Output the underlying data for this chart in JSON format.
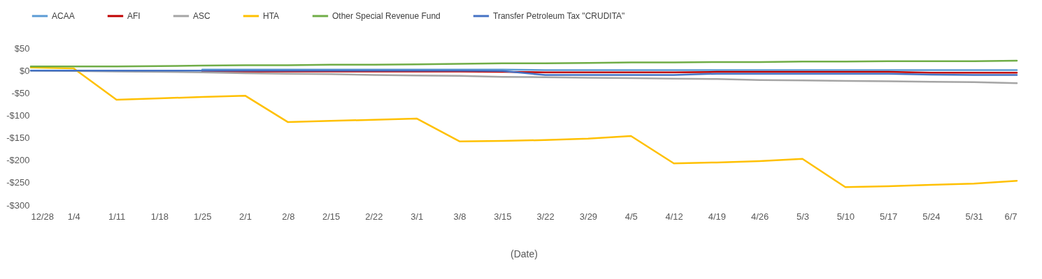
{
  "chart_data": {
    "type": "line",
    "xlabel": "(Date)",
    "categories": [
      "12/28",
      "1/4",
      "1/11",
      "1/18",
      "1/25",
      "2/1",
      "2/8",
      "2/15",
      "2/22",
      "3/1",
      "3/8",
      "3/15",
      "3/22",
      "3/29",
      "4/5",
      "4/12",
      "4/19",
      "4/26",
      "5/3",
      "5/10",
      "5/17",
      "5/24",
      "5/31",
      "6/7"
    ],
    "series": [
      {
        "name": "ACAA",
        "color": "#5b9bd5",
        "values": [
          null,
          null,
          null,
          null,
          2,
          2,
          2,
          2,
          2,
          2,
          2,
          2,
          1,
          1,
          1,
          1,
          1,
          1,
          1,
          1,
          1,
          1,
          1,
          1
        ]
      },
      {
        "name": "AFI",
        "color": "#c00000",
        "values": [
          null,
          null,
          null,
          null,
          -2,
          -2,
          -2,
          -2,
          -2,
          -2,
          -2,
          -3,
          -4,
          -4,
          -4,
          -4,
          -3,
          -3,
          -3,
          -3,
          -3,
          -5,
          -5,
          -5
        ]
      },
      {
        "name": "ASC",
        "color": "#a5a5a5",
        "values": [
          0,
          -1,
          -2,
          -3,
          -4,
          -6,
          -7,
          -8,
          -10,
          -11,
          -12,
          -14,
          -15,
          -16,
          -17,
          -18,
          -19,
          -21,
          -22,
          -23,
          -24,
          -25,
          -26,
          -28
        ]
      },
      {
        "name": "HTA",
        "color": "#ffc000",
        "values": [
          7,
          5,
          -65,
          -62,
          -59,
          -56,
          -115,
          -112,
          -110,
          -107,
          -158,
          -157,
          -155,
          -152,
          -146,
          -207,
          -205,
          -202,
          -197,
          -260,
          -258,
          -255,
          -252,
          -246
        ]
      },
      {
        "name": "Other Special Revenue Fund",
        "color": "#70ad47",
        "values": [
          9,
          9,
          9,
          10,
          11,
          12,
          12,
          13,
          13,
          14,
          15,
          16,
          16,
          17,
          18,
          18,
          19,
          19,
          20,
          20,
          21,
          21,
          21,
          22
        ]
      },
      {
        "name": "Transfer Petroleum Tax \"CRUDITA\"",
        "color": "#4472c4",
        "values": [
          0,
          0,
          0,
          0,
          0,
          0,
          0,
          0,
          0,
          0,
          0,
          -1,
          -10,
          -10,
          -10,
          -10,
          -7,
          -7,
          -7,
          -7,
          -7,
          -9,
          -10,
          -10
        ]
      }
    ],
    "ylim": [
      -300,
      50
    ],
    "yticks": [
      {
        "value": 50,
        "label": "$50"
      },
      {
        "value": 0,
        "label": "$0"
      },
      {
        "value": -50,
        "label": "-$50"
      },
      {
        "value": -100,
        "label": "-$100"
      },
      {
        "value": -150,
        "label": "-$150"
      },
      {
        "value": -200,
        "label": "-$200"
      },
      {
        "value": -250,
        "label": "-$250"
      },
      {
        "value": -300,
        "label": "-$300"
      }
    ],
    "grid": false,
    "legend": "top",
    "marker": "none",
    "line_style": "solid"
  }
}
